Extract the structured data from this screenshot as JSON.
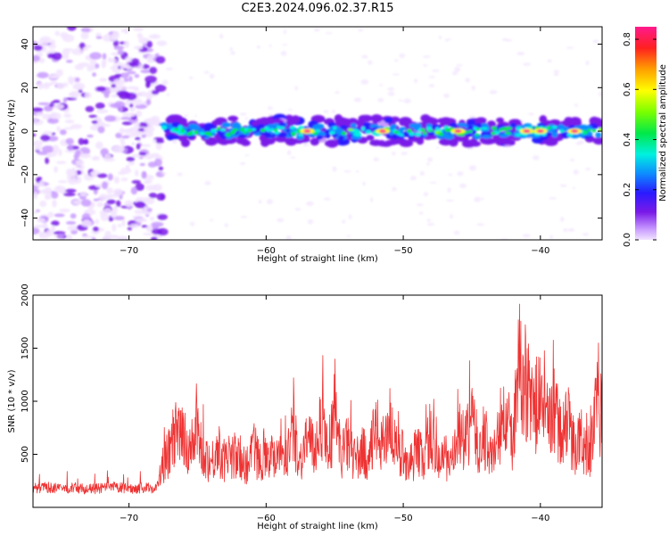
{
  "title": "C2E3.2024.096.02.37.R15",
  "colors": {
    "snr_line": "#ee3333",
    "colormap": [
      "#f2e4ff",
      "#c89bff",
      "#7a1ae8",
      "#2a1aff",
      "#0d8bff",
      "#00f0e0",
      "#00e84a",
      "#7bff00",
      "#ffff00",
      "#ffa000",
      "#ff2020",
      "#ff1a8c"
    ]
  },
  "chart_data": [
    {
      "type": "heatmap",
      "title": "C2E3.2024.096.02.37.R15",
      "xlabel": "Height of straight line (km)",
      "ylabel": "Frequency (Hz)",
      "xlim": [
        -77,
        -35.5
      ],
      "ylim": [
        -50,
        48
      ],
      "xticks": [
        -70,
        -60,
        -50,
        -40
      ],
      "yticks": [
        -40,
        -20,
        0,
        20,
        40
      ],
      "colorbar": {
        "label": "Normalized spectral amplitude",
        "range": [
          0,
          0.85
        ],
        "ticks": [
          0.0,
          0.2,
          0.4,
          0.6,
          0.8
        ]
      },
      "features": [
        {
          "description": "scattered low-amplitude noise",
          "x_range": [
            -77,
            -67.5
          ],
          "y_range": [
            -50,
            48
          ],
          "amplitude": 0.1
        },
        {
          "description": "narrow band centered at 0 Hz",
          "x_range": [
            -67.5,
            -35.5
          ],
          "y_center": 0,
          "half_width_hz": 3,
          "amplitude_range": [
            0.25,
            0.85
          ]
        }
      ],
      "band_peaks_x": [
        -57,
        -51.5,
        -46,
        -41,
        -40,
        -37.5
      ]
    },
    {
      "type": "line",
      "xlabel": "Height of straight line (km)",
      "ylabel": "SNR (10 * v/v)",
      "xlim": [
        -77,
        -35.5
      ],
      "ylim": [
        0,
        2000
      ],
      "xticks": [
        -70,
        -60,
        -50,
        -40
      ],
      "yticks": [
        500,
        1000,
        1500,
        2000
      ],
      "x": [
        -77,
        -76,
        -75,
        -74,
        -73,
        -72,
        -71,
        -70,
        -69,
        -68,
        -67.5,
        -67,
        -66.5,
        -66,
        -65.5,
        -65,
        -64.5,
        -64,
        -63.5,
        -63,
        -62.5,
        -62,
        -61.5,
        -61,
        -60.5,
        -60,
        -59.5,
        -59,
        -58.5,
        -58,
        -57.5,
        -57,
        -56.5,
        -56,
        -55.5,
        -55,
        -54.5,
        -54,
        -53.5,
        -53,
        -52.5,
        -52,
        -51.5,
        -51,
        -50.5,
        -50,
        -49.5,
        -49,
        -48.5,
        -48,
        -47.5,
        -47,
        -46.5,
        -46,
        -45.5,
        -45,
        -44.5,
        -44,
        -43.5,
        -43,
        -42.5,
        -42,
        -41.5,
        -41,
        -40.5,
        -40,
        -39.5,
        -39,
        -38.5,
        -38,
        -37.5,
        -37,
        -36.5,
        -36,
        -35.5
      ],
      "y": [
        180,
        190,
        175,
        185,
        170,
        180,
        190,
        175,
        185,
        180,
        380,
        550,
        700,
        620,
        560,
        680,
        500,
        420,
        560,
        420,
        500,
        450,
        380,
        560,
        450,
        550,
        470,
        600,
        500,
        720,
        430,
        680,
        500,
        850,
        560,
        780,
        500,
        600,
        440,
        520,
        460,
        730,
        580,
        840,
        480,
        520,
        400,
        550,
        450,
        720,
        400,
        500,
        380,
        700,
        580,
        860,
        520,
        640,
        450,
        700,
        850,
        600,
        1350,
        1150,
        900,
        1050,
        800,
        950,
        650,
        800,
        560,
        650,
        440,
        850,
        800
      ]
    }
  ]
}
